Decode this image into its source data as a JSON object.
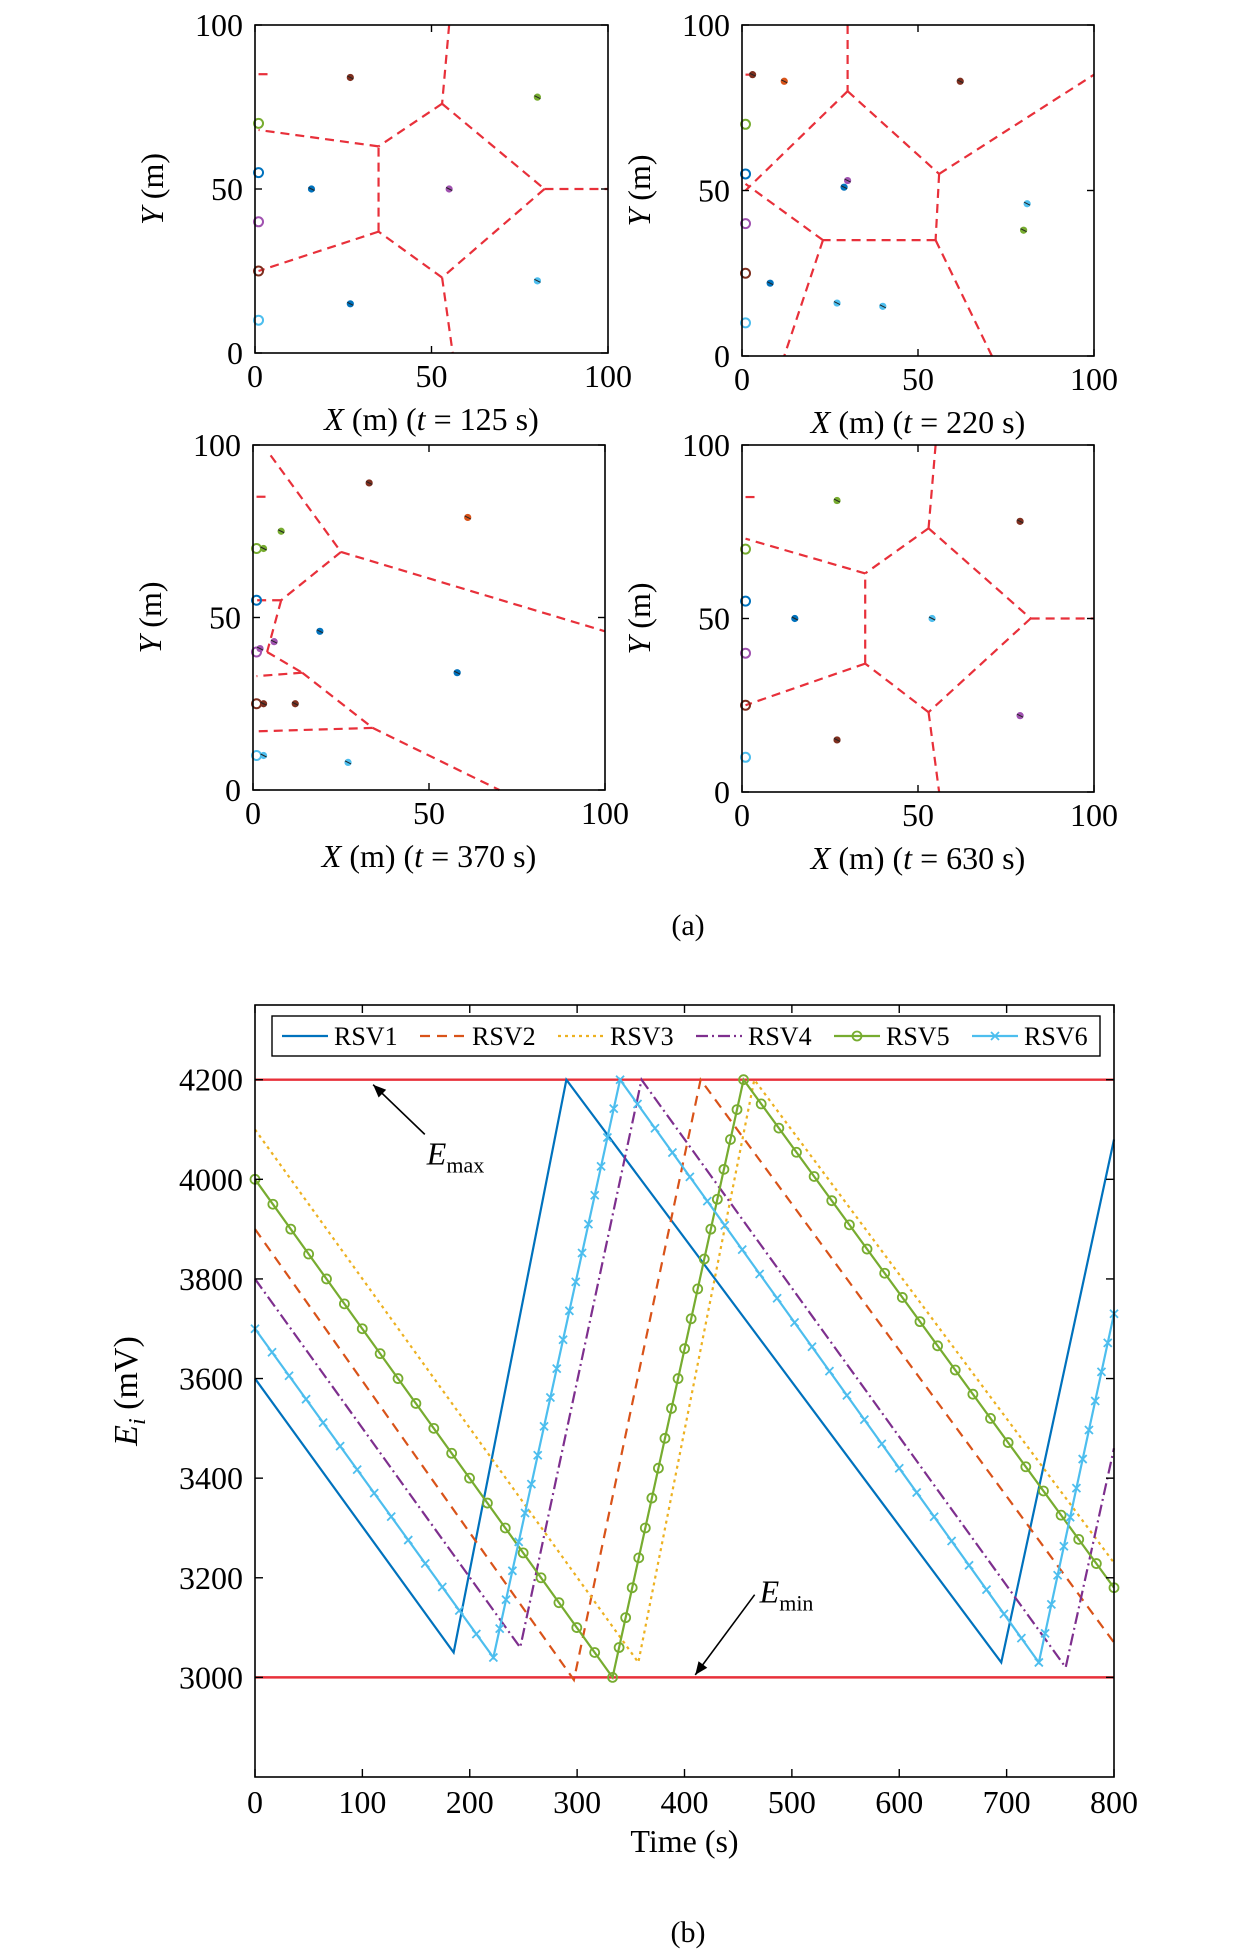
{
  "figure_labels": {
    "a": "(a)",
    "b": "(b)"
  },
  "chart_data": [
    {
      "type": "scatter",
      "panel": "a1",
      "xlabel": "X (m) (t = 125 s)",
      "xlabel_parts": {
        "var": "X",
        "unit": " (m) (",
        "tvar": "t",
        "rest": " = 125 s)"
      },
      "ylabel": "Y (m)",
      "ylabel_parts": {
        "var": "Y",
        "unit": " (m)"
      },
      "xlim": [
        0,
        100
      ],
      "ylim": [
        0,
        100
      ],
      "xticks": [
        "0",
        "50",
        "100"
      ],
      "yticks": [
        "0",
        "50",
        "100"
      ],
      "boundaries": [
        [
          [
            55,
            100
          ],
          [
            53,
            76
          ]
        ],
        [
          [
            53,
            76
          ],
          [
            35,
            63
          ]
        ],
        [
          [
            35,
            63
          ],
          [
            1,
            68
          ]
        ],
        [
          [
            53,
            76
          ],
          [
            82,
            50
          ]
        ],
        [
          [
            82,
            50
          ],
          [
            100,
            50
          ]
        ],
        [
          [
            82,
            50
          ],
          [
            53,
            23
          ]
        ],
        [
          [
            53,
            23
          ],
          [
            35,
            37
          ]
        ],
        [
          [
            35,
            37
          ],
          [
            35,
            63
          ]
        ],
        [
          [
            35,
            37
          ],
          [
            1,
            25
          ]
        ],
        [
          [
            53,
            23
          ],
          [
            56,
            0
          ]
        ],
        [
          [
            1,
            85
          ],
          [
            4,
            85
          ]
        ]
      ],
      "charging_stations": [
        [
          1,
          70,
          "#77ac30"
        ],
        [
          1,
          55,
          "#0072bd"
        ],
        [
          1,
          40,
          "#a052b0"
        ],
        [
          1,
          25,
          "#7e2f1f"
        ],
        [
          1,
          10,
          "#4dbeee"
        ]
      ],
      "vehicles": [
        [
          27,
          84,
          "#7e2f1f"
        ],
        [
          80,
          78,
          "#77ac30"
        ],
        [
          16,
          50,
          "#0072bd"
        ],
        [
          55,
          50,
          "#a052b0"
        ],
        [
          27,
          15,
          "#0072bd"
        ],
        [
          80,
          22,
          "#4dbeee"
        ]
      ]
    },
    {
      "type": "scatter",
      "panel": "a2",
      "xlabel": "X (m) (t = 220 s)",
      "xlabel_parts": {
        "var": "X",
        "unit": " (m) (",
        "tvar": "t",
        "rest": " = 220 s)"
      },
      "ylabel": "Y (m)",
      "ylabel_parts": {
        "var": "Y",
        "unit": " (m)"
      },
      "xlim": [
        0,
        100
      ],
      "ylim": [
        0,
        100
      ],
      "xticks": [
        "0",
        "50",
        "100"
      ],
      "yticks": [
        "0",
        "50",
        "100"
      ],
      "boundaries": [
        [
          [
            30,
            100
          ],
          [
            30,
            80
          ]
        ],
        [
          [
            30,
            80
          ],
          [
            1,
            50
          ]
        ],
        [
          [
            30,
            80
          ],
          [
            56,
            55
          ]
        ],
        [
          [
            56,
            55
          ],
          [
            100,
            85
          ]
        ],
        [
          [
            56,
            55
          ],
          [
            55,
            35
          ]
        ],
        [
          [
            55,
            35
          ],
          [
            71,
            0
          ]
        ],
        [
          [
            55,
            35
          ],
          [
            23,
            35
          ]
        ],
        [
          [
            23,
            35
          ],
          [
            1,
            52
          ]
        ],
        [
          [
            23,
            35
          ],
          [
            12,
            0
          ]
        ],
        [
          [
            1,
            85
          ],
          [
            4,
            85
          ]
        ]
      ],
      "charging_stations": [
        [
          1,
          70,
          "#77ac30"
        ],
        [
          1,
          55,
          "#0072bd"
        ],
        [
          1,
          40,
          "#a052b0"
        ],
        [
          1,
          25,
          "#7e2f1f"
        ],
        [
          1,
          10,
          "#4dbeee"
        ]
      ],
      "vehicles": [
        [
          12,
          83,
          "#d95319"
        ],
        [
          62,
          83,
          "#7e2f1f"
        ],
        [
          29,
          51,
          "#0072bd"
        ],
        [
          81,
          46,
          "#4dbeee"
        ],
        [
          8,
          22,
          "#0072bd"
        ],
        [
          27,
          16,
          "#4dbeee"
        ],
        [
          3,
          85,
          "#7e2f1f"
        ],
        [
          30,
          53,
          "#a052b0"
        ],
        [
          40,
          15,
          "#4dbeee"
        ],
        [
          80,
          38,
          "#77ac30"
        ]
      ]
    },
    {
      "type": "scatter",
      "panel": "a3",
      "xlabel": "X (m) (t = 370 s)",
      "xlabel_parts": {
        "var": "X",
        "unit": " (m) (",
        "tvar": "t",
        "rest": " = 370 s)"
      },
      "ylabel": "Y (m)",
      "ylabel_parts": {
        "var": "Y",
        "unit": " (m)"
      },
      "xlim": [
        0,
        100
      ],
      "ylim": [
        0,
        100
      ],
      "xticks": [
        "0",
        "50",
        "100"
      ],
      "yticks": [
        "0",
        "50",
        "100"
      ],
      "boundaries": [
        [
          [
            5,
            97
          ],
          [
            25,
            69
          ]
        ],
        [
          [
            25,
            69
          ],
          [
            100,
            46
          ]
        ],
        [
          [
            25,
            69
          ],
          [
            8,
            55
          ]
        ],
        [
          [
            8,
            55
          ],
          [
            1,
            55
          ]
        ],
        [
          [
            8,
            55
          ],
          [
            4,
            40
          ]
        ],
        [
          [
            4,
            40
          ],
          [
            14,
            34
          ]
        ],
        [
          [
            14,
            34
          ],
          [
            1,
            33
          ]
        ],
        [
          [
            14,
            34
          ],
          [
            34,
            18
          ]
        ],
        [
          [
            34,
            18
          ],
          [
            1,
            17
          ]
        ],
        [
          [
            34,
            18
          ],
          [
            70,
            0
          ]
        ],
        [
          [
            1,
            85
          ],
          [
            4,
            85
          ]
        ]
      ],
      "charging_stations": [
        [
          1,
          70,
          "#77ac30"
        ],
        [
          1,
          55,
          "#0072bd"
        ],
        [
          1,
          40,
          "#a052b0"
        ],
        [
          1,
          25,
          "#7e2f1f"
        ],
        [
          1,
          10,
          "#4dbeee"
        ]
      ],
      "vehicles": [
        [
          33,
          89,
          "#7e2f1f"
        ],
        [
          61,
          79,
          "#d95319"
        ],
        [
          8,
          75,
          "#77ac30"
        ],
        [
          19,
          46,
          "#0072bd"
        ],
        [
          58,
          34,
          "#0072bd"
        ],
        [
          6,
          43,
          "#a052b0"
        ],
        [
          12,
          25,
          "#7e2f1f"
        ],
        [
          3,
          25,
          "#7e2f1f"
        ],
        [
          2,
          41,
          "#a052b0"
        ],
        [
          3,
          70,
          "#77ac30"
        ],
        [
          27,
          8,
          "#4dbeee"
        ],
        [
          3,
          10,
          "#4dbeee"
        ]
      ]
    },
    {
      "type": "scatter",
      "panel": "a4",
      "xlabel": "X (m) (t = 630 s)",
      "xlabel_parts": {
        "var": "X",
        "unit": " (m) (",
        "tvar": "t",
        "rest": " = 630 s)"
      },
      "ylabel": "Y (m)",
      "ylabel_parts": {
        "var": "Y",
        "unit": " (m)"
      },
      "xlim": [
        0,
        100
      ],
      "ylim": [
        0,
        100
      ],
      "xticks": [
        "0",
        "50",
        "100"
      ],
      "yticks": [
        "0",
        "50",
        "100"
      ],
      "boundaries": [
        [
          [
            55,
            100
          ],
          [
            53,
            76
          ]
        ],
        [
          [
            53,
            76
          ],
          [
            35,
            63
          ]
        ],
        [
          [
            35,
            63
          ],
          [
            1,
            73
          ]
        ],
        [
          [
            53,
            76
          ],
          [
            82,
            50
          ]
        ],
        [
          [
            82,
            50
          ],
          [
            100,
            50
          ]
        ],
        [
          [
            82,
            50
          ],
          [
            53,
            23
          ]
        ],
        [
          [
            53,
            23
          ],
          [
            35,
            37
          ]
        ],
        [
          [
            35,
            37
          ],
          [
            35,
            63
          ]
        ],
        [
          [
            35,
            37
          ],
          [
            1,
            25
          ]
        ],
        [
          [
            53,
            23
          ],
          [
            56,
            0
          ]
        ],
        [
          [
            1,
            85
          ],
          [
            4,
            85
          ]
        ]
      ],
      "charging_stations": [
        [
          1,
          70,
          "#77ac30"
        ],
        [
          1,
          55,
          "#0072bd"
        ],
        [
          1,
          40,
          "#a052b0"
        ],
        [
          1,
          25,
          "#7e2f1f"
        ],
        [
          1,
          10,
          "#4dbeee"
        ]
      ],
      "vehicles": [
        [
          27,
          84,
          "#77ac30"
        ],
        [
          79,
          78,
          "#7e2f1f"
        ],
        [
          15,
          50,
          "#0072bd"
        ],
        [
          54,
          50,
          "#4dbeee"
        ],
        [
          27,
          15,
          "#7e2f1f"
        ],
        [
          79,
          22,
          "#a052b0"
        ]
      ]
    },
    {
      "type": "line",
      "panel": "b",
      "xlabel": "Time (s)",
      "ylabel": "Ei (mV)",
      "ylabel_parts": {
        "var": "E",
        "sub": "i",
        "unit": " (mV)"
      },
      "xlim": [
        0,
        800
      ],
      "ylim": [
        2800,
        4350
      ],
      "xticks": [
        "0",
        "100",
        "200",
        "300",
        "400",
        "500",
        "600",
        "700",
        "800"
      ],
      "yticks": [
        "3000",
        "3200",
        "3400",
        "3600",
        "3800",
        "4000",
        "4200"
      ],
      "legend_position": "top",
      "reference_lines": [
        {
          "y": 4200,
          "color": "#e8303a"
        },
        {
          "y": 3000,
          "color": "#e8303a"
        }
      ],
      "annotations": [
        {
          "text": "E",
          "sub": "max",
          "text_at": [
            160,
            4030
          ],
          "arrow_to": [
            110,
            4190
          ]
        },
        {
          "text": "E",
          "sub": "min",
          "text_at": [
            470,
            3150
          ],
          "arrow_to": [
            410,
            3005
          ]
        }
      ],
      "series": [
        {
          "name": "RSV1",
          "color": "#0072bd",
          "dash": "",
          "marker": "",
          "points": [
            [
              0,
              3600
            ],
            [
              185,
              3050
            ],
            [
              290,
              4200
            ],
            [
              695,
              3030
            ],
            [
              800,
              4080
            ]
          ]
        },
        {
          "name": "RSV2",
          "color": "#d95319",
          "dash": "10,7",
          "marker": "",
          "points": [
            [
              0,
              3900
            ],
            [
              297,
              2995
            ],
            [
              415,
              4200
            ],
            [
              800,
              3070
            ]
          ]
        },
        {
          "name": "RSV3",
          "color": "#edb120",
          "dash": "3,4",
          "marker": "",
          "points": [
            [
              0,
              4100
            ],
            [
              357,
              3030
            ],
            [
              465,
              4200
            ],
            [
              800,
              3230
            ]
          ]
        },
        {
          "name": "RSV4",
          "color": "#7e2f8e",
          "dash": "12,4,2,4",
          "marker": "",
          "points": [
            [
              0,
              3800
            ],
            [
              247,
              3060
            ],
            [
              360,
              4200
            ],
            [
              755,
              3020
            ],
            [
              800,
              3460
            ]
          ]
        },
        {
          "name": "RSV5",
          "color": "#77ac30",
          "dash": "",
          "marker": "circle",
          "points": [
            [
              0,
              4000
            ],
            [
              333,
              3000
            ],
            [
              455,
              4200
            ],
            [
              800,
              3180
            ]
          ]
        },
        {
          "name": "RSV6",
          "color": "#4dbeee",
          "dash": "",
          "marker": "x",
          "points": [
            [
              0,
              3700
            ],
            [
              222,
              3040
            ],
            [
              340,
              4200
            ],
            [
              730,
              3030
            ],
            [
              800,
              3730
            ]
          ]
        }
      ]
    }
  ]
}
